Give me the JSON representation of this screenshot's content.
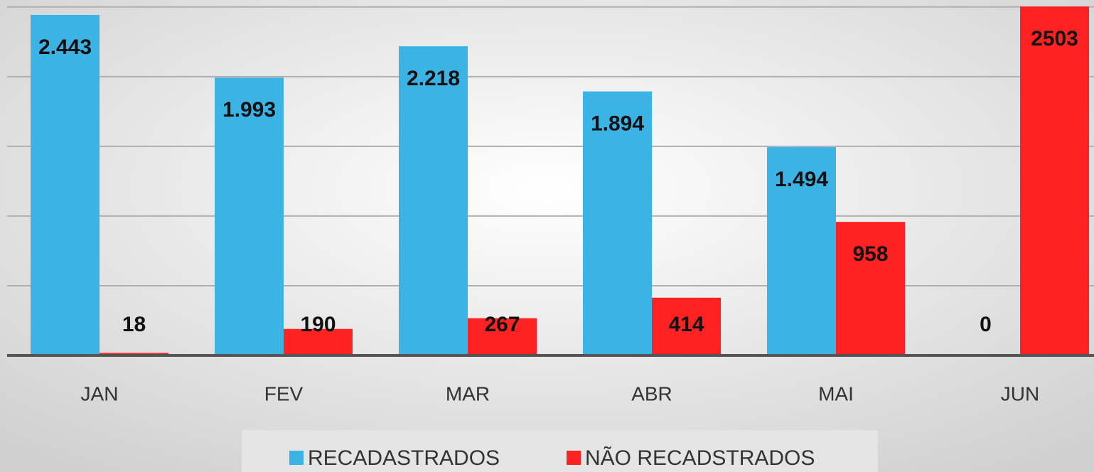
{
  "chart_data": {
    "type": "bar",
    "categories": [
      "JAN",
      "FEV",
      "MAR",
      "ABR",
      "MAI",
      "JUN"
    ],
    "series": [
      {
        "name": "RECADASTRADOS",
        "color": "#3bb3e4",
        "values": [
          2443,
          1993,
          2218,
          1894,
          1494,
          0
        ],
        "value_labels": [
          "2.443",
          "1.993",
          "2.218",
          "1.894",
          "1.494",
          "0"
        ]
      },
      {
        "name": "NÃO RECADSTRADOS",
        "color": "#ff2222",
        "values": [
          18,
          190,
          267,
          414,
          958,
          2503
        ]
      }
    ],
    "ylim": [
      0,
      2550
    ],
    "yticks": [
      0,
      500,
      1000,
      1500,
      2000,
      2500
    ],
    "grid": true,
    "legend": "bottom"
  }
}
